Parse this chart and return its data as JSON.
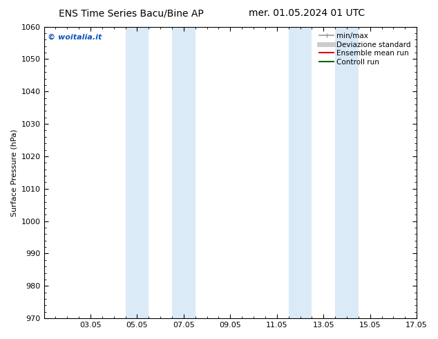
{
  "title_left": "ENS Time Series Bacu/Bine AP",
  "title_right": "mer. 01.05.2024 01 UTC",
  "ylabel": "Surface Pressure (hPa)",
  "ylim": [
    970,
    1060
  ],
  "yticks": [
    970,
    980,
    990,
    1000,
    1010,
    1020,
    1030,
    1040,
    1050,
    1060
  ],
  "xlim": [
    0,
    16
  ],
  "xtick_labels": [
    "03.05",
    "05.05",
    "07.05",
    "09.05",
    "11.05",
    "13.05",
    "15.05",
    "17.05"
  ],
  "xtick_positions": [
    2,
    4,
    6,
    8,
    10,
    12,
    14,
    16
  ],
  "shaded_bands": [
    {
      "x_start": 3.5,
      "x_end": 4.5
    },
    {
      "x_start": 5.5,
      "x_end": 6.5
    },
    {
      "x_start": 10.5,
      "x_end": 11.5
    },
    {
      "x_start": 12.5,
      "x_end": 13.5
    }
  ],
  "shade_color": "#daeaf7",
  "watermark_text": "© woitalia.it",
  "watermark_color": "#1155bb",
  "legend_entries": [
    {
      "label": "min/max",
      "color": "#999999",
      "lw": 1.2
    },
    {
      "label": "Deviazione standard",
      "color": "#cccccc",
      "lw": 5
    },
    {
      "label": "Ensemble mean run",
      "color": "#dd0000",
      "lw": 1.5
    },
    {
      "label": "Controll run",
      "color": "#006600",
      "lw": 1.5
    }
  ],
  "background_color": "#ffffff",
  "title_fontsize": 10,
  "axis_fontsize": 8,
  "tick_fontsize": 8,
  "legend_fontsize": 7.5,
  "watermark_fontsize": 8
}
